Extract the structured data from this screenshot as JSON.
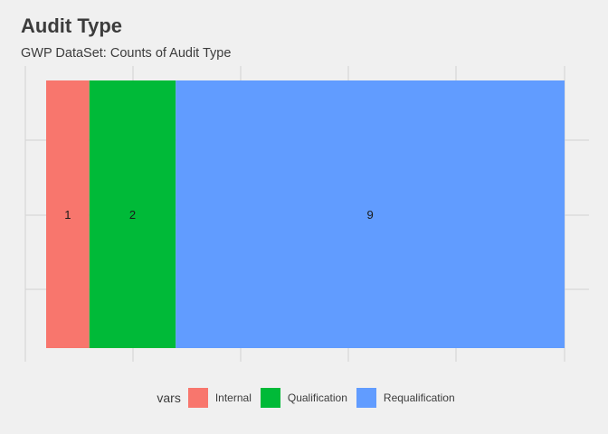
{
  "title": "Audit Type",
  "subtitle": "GWP DataSet: Counts of Audit Type",
  "legend": {
    "title": "vars",
    "items": [
      {
        "label": "Internal",
        "color": "#F8766D"
      },
      {
        "label": "Qualification",
        "color": "#00BA38"
      },
      {
        "label": "Requalification",
        "color": "#619CFF"
      }
    ]
  },
  "chart_data": {
    "type": "bar",
    "orientation": "horizontal-stacked",
    "categories": [
      "Internal",
      "Qualification",
      "Requalification"
    ],
    "values": [
      1,
      2,
      9
    ],
    "colors": [
      "#F8766D",
      "#00BA38",
      "#619CFF"
    ],
    "xlim": [
      0,
      12
    ],
    "grid": true,
    "legend_position": "bottom"
  }
}
